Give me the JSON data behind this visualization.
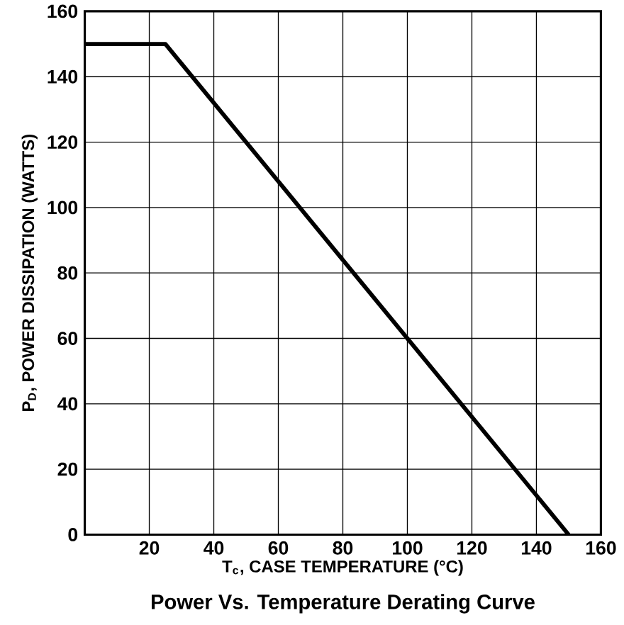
{
  "chart_data": {
    "type": "line",
    "title": "Power Vs. Temperature Derating Curve",
    "xlabel": "T$_{c}$, CASE TEMPERATURE (°C)",
    "ylabel": "P$_{D}$, POWER DISSIPATION (WATTS)",
    "x": [
      0,
      25,
      150
    ],
    "series": [
      {
        "color": "#000000",
        "values": [
          150,
          150,
          0
        ]
      }
    ],
    "xlim": [
      0,
      160
    ],
    "ylim": [
      0,
      160
    ],
    "xticks": [
      20,
      40,
      60,
      80,
      100,
      120,
      140,
      160
    ],
    "yticks": [
      0,
      20,
      40,
      60,
      80,
      100,
      120,
      140,
      160
    ],
    "grid": true,
    "line_style": "solid"
  }
}
